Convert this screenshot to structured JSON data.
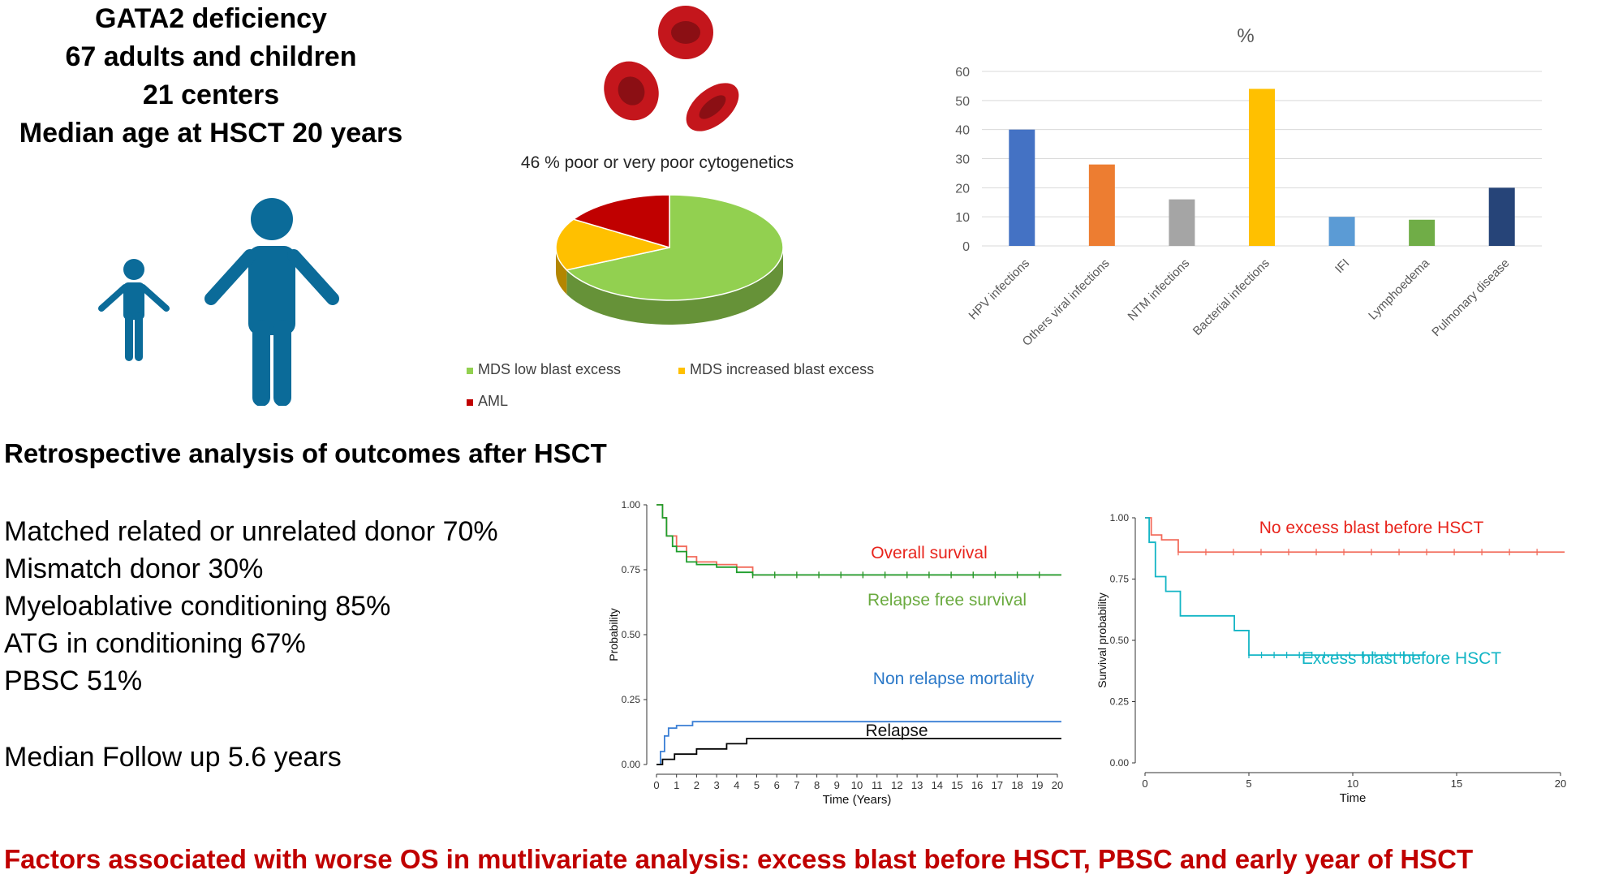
{
  "header": {
    "line1": "GATA2 deficiency",
    "line2": "67 adults and children",
    "line3": "21 centers",
    "line4": "Median age at HSCT 20 years"
  },
  "colors": {
    "person": "#0b6b99",
    "blood_cell": "#c4161c",
    "headline_red": "#c00000"
  },
  "pie_caption": "46 % poor or very poor cytogenetics",
  "section_title": "Retrospective analysis of outcomes after HSCT",
  "bullets": [
    "Matched related or unrelated donor 70%",
    "Mismatch donor 30%",
    "Myeloablative conditioning 85%",
    "ATG in conditioning 67%",
    "PBSC 51%"
  ],
  "followup": "Median Follow up 5.6 years",
  "footer": "Factors associated with worse OS in mutlivariate analysis: excess blast before HSCT, PBSC and early year of HSCT",
  "chart_data": [
    {
      "type": "pie",
      "title": "",
      "slices": [
        {
          "label": "MDS low blast excess",
          "value": 68,
          "color": "#92d050"
        },
        {
          "label": "MDS increased blast excess",
          "value": 16,
          "color": "#ffc000"
        },
        {
          "label": "AML",
          "value": 16,
          "color": "#c00000"
        }
      ],
      "legend": "bottom"
    },
    {
      "type": "bar",
      "title": "%",
      "categories": [
        "HPV infections",
        "Others viral infections",
        "NTM infections",
        "Bacterial infections",
        "IFI",
        "Lymphoedema",
        "Pulmonary disease"
      ],
      "values": [
        40,
        28,
        16,
        54,
        10,
        9,
        20
      ],
      "colors": [
        "#4472c4",
        "#ed7d31",
        "#a5a5a5",
        "#ffc000",
        "#5b9bd5",
        "#70ad47",
        "#264478"
      ],
      "ylim": [
        0,
        60
      ],
      "yticks": [
        "0",
        "10",
        "20",
        "30",
        "40",
        "50",
        "60"
      ],
      "grid": true
    },
    {
      "type": "line",
      "xlabel": "Time (Years)",
      "ylabel": "Probability",
      "xlim": [
        0,
        20
      ],
      "ylim": [
        0,
        1
      ],
      "xticks": [
        "0",
        "1",
        "2",
        "3",
        "4",
        "5",
        "6",
        "7",
        "8",
        "9",
        "10",
        "11",
        "12",
        "13",
        "14",
        "15",
        "16",
        "17",
        "18",
        "19",
        "20"
      ],
      "yticks": [
        "0.00",
        "0.25",
        "0.50",
        "0.75",
        "1.00"
      ],
      "series": [
        {
          "name": "Overall survival",
          "color": "#f26b5b",
          "x": [
            0,
            0.3,
            0.5,
            1.0,
            1.5,
            2.0,
            3.0,
            4.0,
            4.8,
            20.2
          ],
          "y": [
            1.0,
            0.95,
            0.88,
            0.84,
            0.8,
            0.78,
            0.77,
            0.76,
            0.73,
            0.73
          ]
        },
        {
          "name": "Relapse free survival",
          "color": "#1f9e2c",
          "x": [
            0,
            0.3,
            0.5,
            0.8,
            1.0,
            1.5,
            2.0,
            3.0,
            4.0,
            4.8,
            20.2
          ],
          "y": [
            1.0,
            0.95,
            0.88,
            0.84,
            0.82,
            0.78,
            0.77,
            0.76,
            0.74,
            0.73,
            0.73
          ]
        },
        {
          "name": "Non relapse mortality",
          "color": "#3a7fd5",
          "x": [
            0,
            0.2,
            0.4,
            0.6,
            1.0,
            1.8,
            20.2
          ],
          "y": [
            0,
            0.05,
            0.11,
            0.14,
            0.15,
            0.165,
            0.165
          ]
        },
        {
          "name": "Relapse",
          "color": "#000000",
          "x": [
            0,
            0.3,
            0.9,
            2.0,
            3.5,
            4.5,
            20.2
          ],
          "y": [
            0,
            0.02,
            0.04,
            0.06,
            0.08,
            0.1,
            0.1
          ]
        }
      ]
    },
    {
      "type": "line",
      "xlabel": "Time",
      "ylabel": "Survival probability",
      "xlim": [
        0,
        20
      ],
      "ylim": [
        0,
        1
      ],
      "xticks": [
        "0",
        "5",
        "10",
        "15",
        "20"
      ],
      "yticks": [
        "0.00",
        "0.25",
        "0.50",
        "0.75",
        "1.00"
      ],
      "series": [
        {
          "name": "No excess blast before HSCT",
          "color": "#f26b5b",
          "x": [
            0,
            0.3,
            0.8,
            1.6,
            20.2
          ],
          "y": [
            1.0,
            0.93,
            0.91,
            0.86,
            0.86
          ]
        },
        {
          "name": "Excess blast before HSCT",
          "color": "#13b5c5",
          "x": [
            0,
            0.2,
            0.5,
            1.0,
            1.7,
            4.3,
            5.0,
            13.5
          ],
          "y": [
            1.0,
            0.9,
            0.76,
            0.7,
            0.6,
            0.54,
            0.44,
            0.44
          ]
        }
      ]
    }
  ]
}
